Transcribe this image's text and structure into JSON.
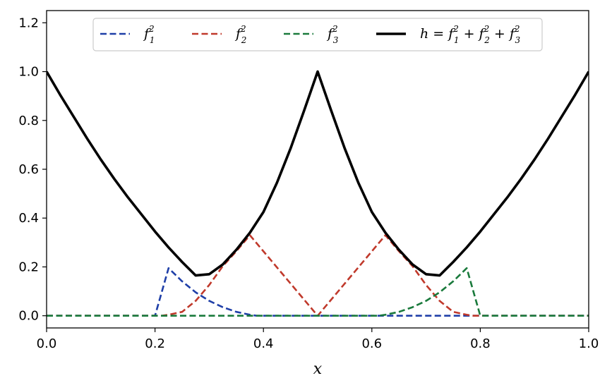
{
  "chart_data": {
    "type": "line",
    "xlabel": "x",
    "ylabel": "",
    "title": "",
    "xlim": [
      0.0,
      1.0
    ],
    "ylim": [
      -0.05,
      1.25
    ],
    "x_ticks": [
      "0.0",
      "0.2",
      "0.4",
      "0.6",
      "0.8",
      "1.0"
    ],
    "y_ticks": [
      "0.0",
      "0.2",
      "0.4",
      "0.6",
      "0.8",
      "1.0",
      "1.2"
    ],
    "grid": false,
    "legend_position": "top-center",
    "series": [
      {
        "key": "f1",
        "name": "f_1^2",
        "legend": {
          "base": "f",
          "sup": "2",
          "sub": "1"
        },
        "style": "dashed",
        "color": "#1f3fa8",
        "x": [
          0.0,
          0.1,
          0.2,
          0.225,
          0.25,
          0.275,
          0.3,
          0.325,
          0.35,
          0.375,
          0.3875,
          0.4,
          0.5,
          0.6,
          0.7,
          0.8,
          0.9,
          1.0
        ],
        "y": [
          0.0,
          0.0,
          0.0,
          0.195,
          0.141,
          0.096,
          0.061,
          0.035,
          0.016,
          0.004,
          0.0,
          0.0,
          0.0,
          0.0,
          0.0,
          0.0,
          0.0,
          0.0
        ]
      },
      {
        "key": "f2",
        "name": "f_2^2",
        "legend": {
          "base": "f",
          "sup": "2",
          "sub": "2"
        },
        "style": "dashed",
        "color": "#c0392b",
        "x": [
          0.0,
          0.1,
          0.2,
          0.2125,
          0.225,
          0.25,
          0.275,
          0.3,
          0.325,
          0.35,
          0.375,
          0.5,
          0.625,
          0.65,
          0.675,
          0.7,
          0.725,
          0.75,
          0.775,
          0.7875,
          0.8,
          0.9,
          1.0
        ],
        "y": [
          0.0,
          0.0,
          0.0,
          0.0,
          0.004,
          0.016,
          0.061,
          0.126,
          0.203,
          0.264,
          0.33,
          0.0,
          0.33,
          0.264,
          0.203,
          0.126,
          0.061,
          0.016,
          0.004,
          0.0,
          0.0,
          0.0,
          0.0
        ]
      },
      {
        "key": "f3",
        "name": "f_3^2",
        "legend": {
          "base": "f",
          "sup": "2",
          "sub": "3"
        },
        "style": "dashed",
        "color": "#1a7a3c",
        "x": [
          0.0,
          0.1,
          0.2,
          0.3,
          0.4,
          0.5,
          0.6,
          0.6125,
          0.625,
          0.65,
          0.675,
          0.7,
          0.725,
          0.75,
          0.775,
          0.8,
          0.9,
          1.0
        ],
        "y": [
          0.0,
          0.0,
          0.0,
          0.0,
          0.0,
          0.0,
          0.0,
          0.0,
          0.004,
          0.016,
          0.035,
          0.061,
          0.096,
          0.141,
          0.195,
          0.0,
          0.0,
          0.0
        ]
      },
      {
        "key": "h",
        "name": "h = f_1^2 + f_2^2 + f_3^2",
        "legend": {
          "parts": [
            {
              "t": "h = f"
            },
            {
              "sup": "2",
              "sub": "1"
            },
            {
              "t": " + f"
            },
            {
              "sup": "2",
              "sub": "2"
            },
            {
              "t": " + f"
            },
            {
              "sup": "2",
              "sub": "3"
            }
          ]
        },
        "style": "solid",
        "color": "#000000",
        "x": [
          0.0,
          0.025,
          0.05,
          0.075,
          0.1,
          0.125,
          0.15,
          0.175,
          0.2,
          0.225,
          0.25,
          0.275,
          0.3,
          0.325,
          0.35,
          0.375,
          0.4,
          0.425,
          0.45,
          0.475,
          0.5,
          0.525,
          0.55,
          0.575,
          0.6,
          0.625,
          0.65,
          0.675,
          0.7,
          0.725,
          0.75,
          0.775,
          0.8,
          0.825,
          0.85,
          0.875,
          0.9,
          0.925,
          0.95,
          0.975,
          1.0
        ],
        "y": [
          1.0,
          0.905,
          0.815,
          0.725,
          0.64,
          0.56,
          0.485,
          0.415,
          0.345,
          0.28,
          0.22,
          0.165,
          0.17,
          0.21,
          0.27,
          0.34,
          0.425,
          0.545,
          0.685,
          0.84,
          1.0,
          0.84,
          0.685,
          0.545,
          0.425,
          0.34,
          0.27,
          0.21,
          0.17,
          0.165,
          0.22,
          0.28,
          0.345,
          0.415,
          0.485,
          0.56,
          0.64,
          0.725,
          0.815,
          0.905,
          1.0
        ]
      }
    ]
  }
}
